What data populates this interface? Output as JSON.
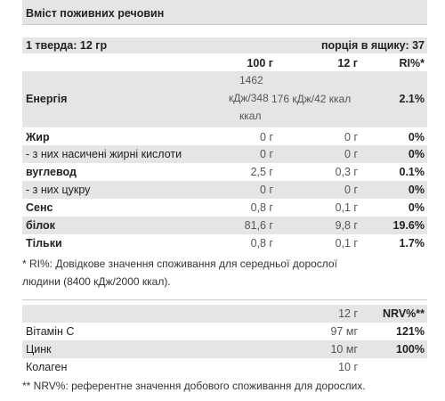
{
  "title": "Вміст поживних речовин",
  "serving": {
    "label": "1 тверда: 12 гр",
    "per_box": "порція в ящику: 37"
  },
  "headers": {
    "col1": "100 г",
    "col2": "12 г",
    "col3": "RI%*"
  },
  "energy": {
    "label": "Енергія",
    "col1_line1": "1462",
    "col1_line2": "кДж/348",
    "col1_line3": "ккал",
    "col2": "176 кДж/42 ккал",
    "col3": "2.1%"
  },
  "rows": [
    {
      "label": "Жир",
      "col1": "0 г",
      "col2": "0 г",
      "col3": "0%"
    },
    {
      "label": "- з них насичені жирні кислоти",
      "col1": "0 г",
      "col2": "0 г",
      "col3": "0%"
    },
    {
      "label": "вуглевод",
      "col1": "2,5 г",
      "col2": "0,3 г",
      "col3": "0.1%"
    },
    {
      "label": "- з них цукру",
      "col1": "0 г",
      "col2": "0 г",
      "col3": "0%"
    },
    {
      "label": "Сенс",
      "col1": "0,8 г",
      "col2": "0,1 г",
      "col3": "0%"
    },
    {
      "label": "білок",
      "col1": "81,6 г",
      "col2": "9,8 г",
      "col3": "19.6%"
    },
    {
      "label": "Тільки",
      "col1": "0,8 г",
      "col2": "0,1 г",
      "col3": "1.7%"
    }
  ],
  "ri_note_line1": "* RI%: Довідкове значення споживання для середньої дорослої",
  "ri_note_line2": "людини (8400 кДж/2000 ккал).",
  "nrv_headers": {
    "col1": "12 г",
    "col2": "NRV%**"
  },
  "nrv_rows": [
    {
      "label": "Вітамін C",
      "col1": "97 мг",
      "col2": "121%"
    },
    {
      "label": "Цинк",
      "col1": "10 мг",
      "col2": "100%"
    },
    {
      "label": "Колаген",
      "col1": "10 г",
      "col2": ""
    }
  ],
  "nrv_note": "** NRV%: референтне значення добового споживання для дорослих."
}
